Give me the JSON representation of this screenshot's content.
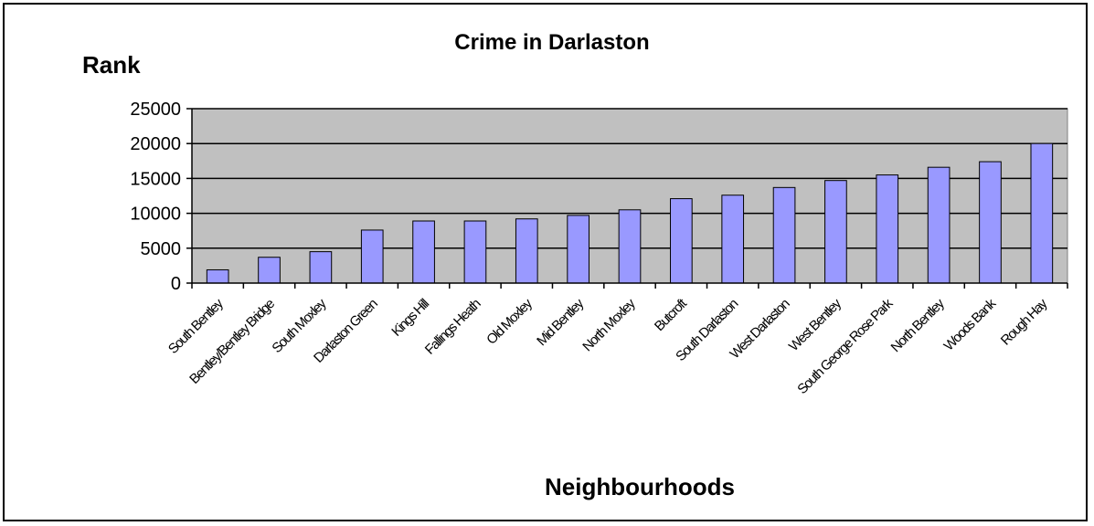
{
  "chart_data": {
    "type": "bar",
    "title": "Crime in Darlaston",
    "xlabel": "Neighbourhoods",
    "ylabel": "Rank",
    "categories": [
      "South Bentley",
      "Bentley/Bentley Bridge",
      "South Moxley",
      "Darlaston Green",
      "Kings Hill",
      "Fallings Heath",
      "Old Moxley",
      "Mid Bentley",
      "North Moxley",
      "Butcroft",
      "South Darlaston",
      "West Darlaston",
      "West Bentley",
      "South George Rose Park",
      "North Bentley",
      "Woods Bank",
      "Rough Hay"
    ],
    "values": [
      1900,
      3700,
      4500,
      7600,
      8900,
      8900,
      9200,
      9700,
      10500,
      12100,
      12600,
      13700,
      14700,
      15500,
      16600,
      17400,
      20000
    ],
    "ylim": [
      0,
      25000
    ],
    "yticks": [
      "0",
      "5000",
      "10000",
      "15000",
      "20000",
      "25000"
    ],
    "grid": true,
    "legend": "none",
    "colors": {
      "bar_fill": "#9999ff",
      "bar_stroke": "#000000",
      "plot_background": "#c0c0c0",
      "gridline": "#000000"
    }
  }
}
